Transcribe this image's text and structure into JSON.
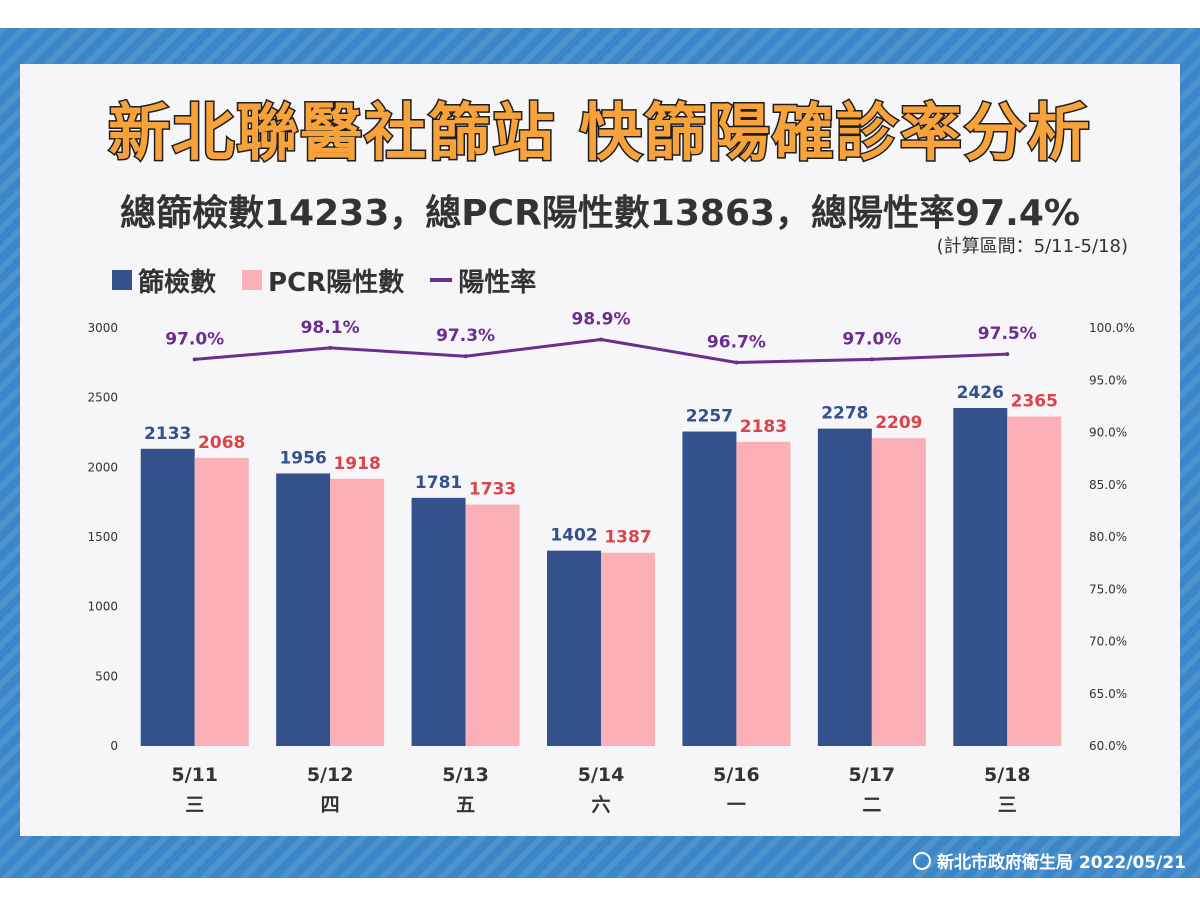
{
  "title": "新北聯醫社篩站 快篩陽確診率分析",
  "subtitle": "總篩檢數14233，總PCR陽性數13863，總陽性率97.4%",
  "range_note": "(計算區間：5/11-5/18)",
  "footer": "新北市政府衛生局 2022/05/21",
  "colors": {
    "screened": "#34518c",
    "pcr": "#fbb0b8",
    "rate": "#6b2d8e",
    "screened_label": "#34518c",
    "pcr_label": "#d9454b"
  },
  "legend": {
    "screened": "篩檢數",
    "pcr": "PCR陽性數",
    "rate": "陽性率"
  },
  "chart_data": {
    "type": "bar",
    "categories": [
      "5/11",
      "5/12",
      "5/13",
      "5/14",
      "5/16",
      "5/17",
      "5/18"
    ],
    "weekdays": [
      "三",
      "四",
      "五",
      "六",
      "一",
      "二",
      "三"
    ],
    "series": [
      {
        "name": "篩檢數",
        "values": [
          2133,
          1956,
          1781,
          1402,
          2257,
          2278,
          2426
        ],
        "axis": "left"
      },
      {
        "name": "PCR陽性數",
        "values": [
          2068,
          1918,
          1733,
          1387,
          2183,
          2209,
          2365
        ],
        "axis": "left"
      },
      {
        "name": "陽性率",
        "type": "line",
        "values": [
          97.0,
          98.1,
          97.3,
          98.9,
          96.7,
          97.0,
          97.5
        ],
        "labels": [
          "97.0%",
          "98.1%",
          "97.3%",
          "98.9%",
          "96.7%",
          "97.0%",
          "97.5%"
        ],
        "axis": "right"
      }
    ],
    "ylim": [
      0,
      3000
    ],
    "y_ticks": [
      "0",
      "500",
      "1000",
      "1500",
      "2000",
      "2500",
      "3000"
    ],
    "y2lim": [
      60,
      100
    ],
    "y2_ticks": [
      "60.0%",
      "65.0%",
      "70.0%",
      "75.0%",
      "80.0%",
      "85.0%",
      "90.0%",
      "95.0%",
      "100.0%"
    ],
    "grid": false,
    "legend_position": "top-left"
  }
}
